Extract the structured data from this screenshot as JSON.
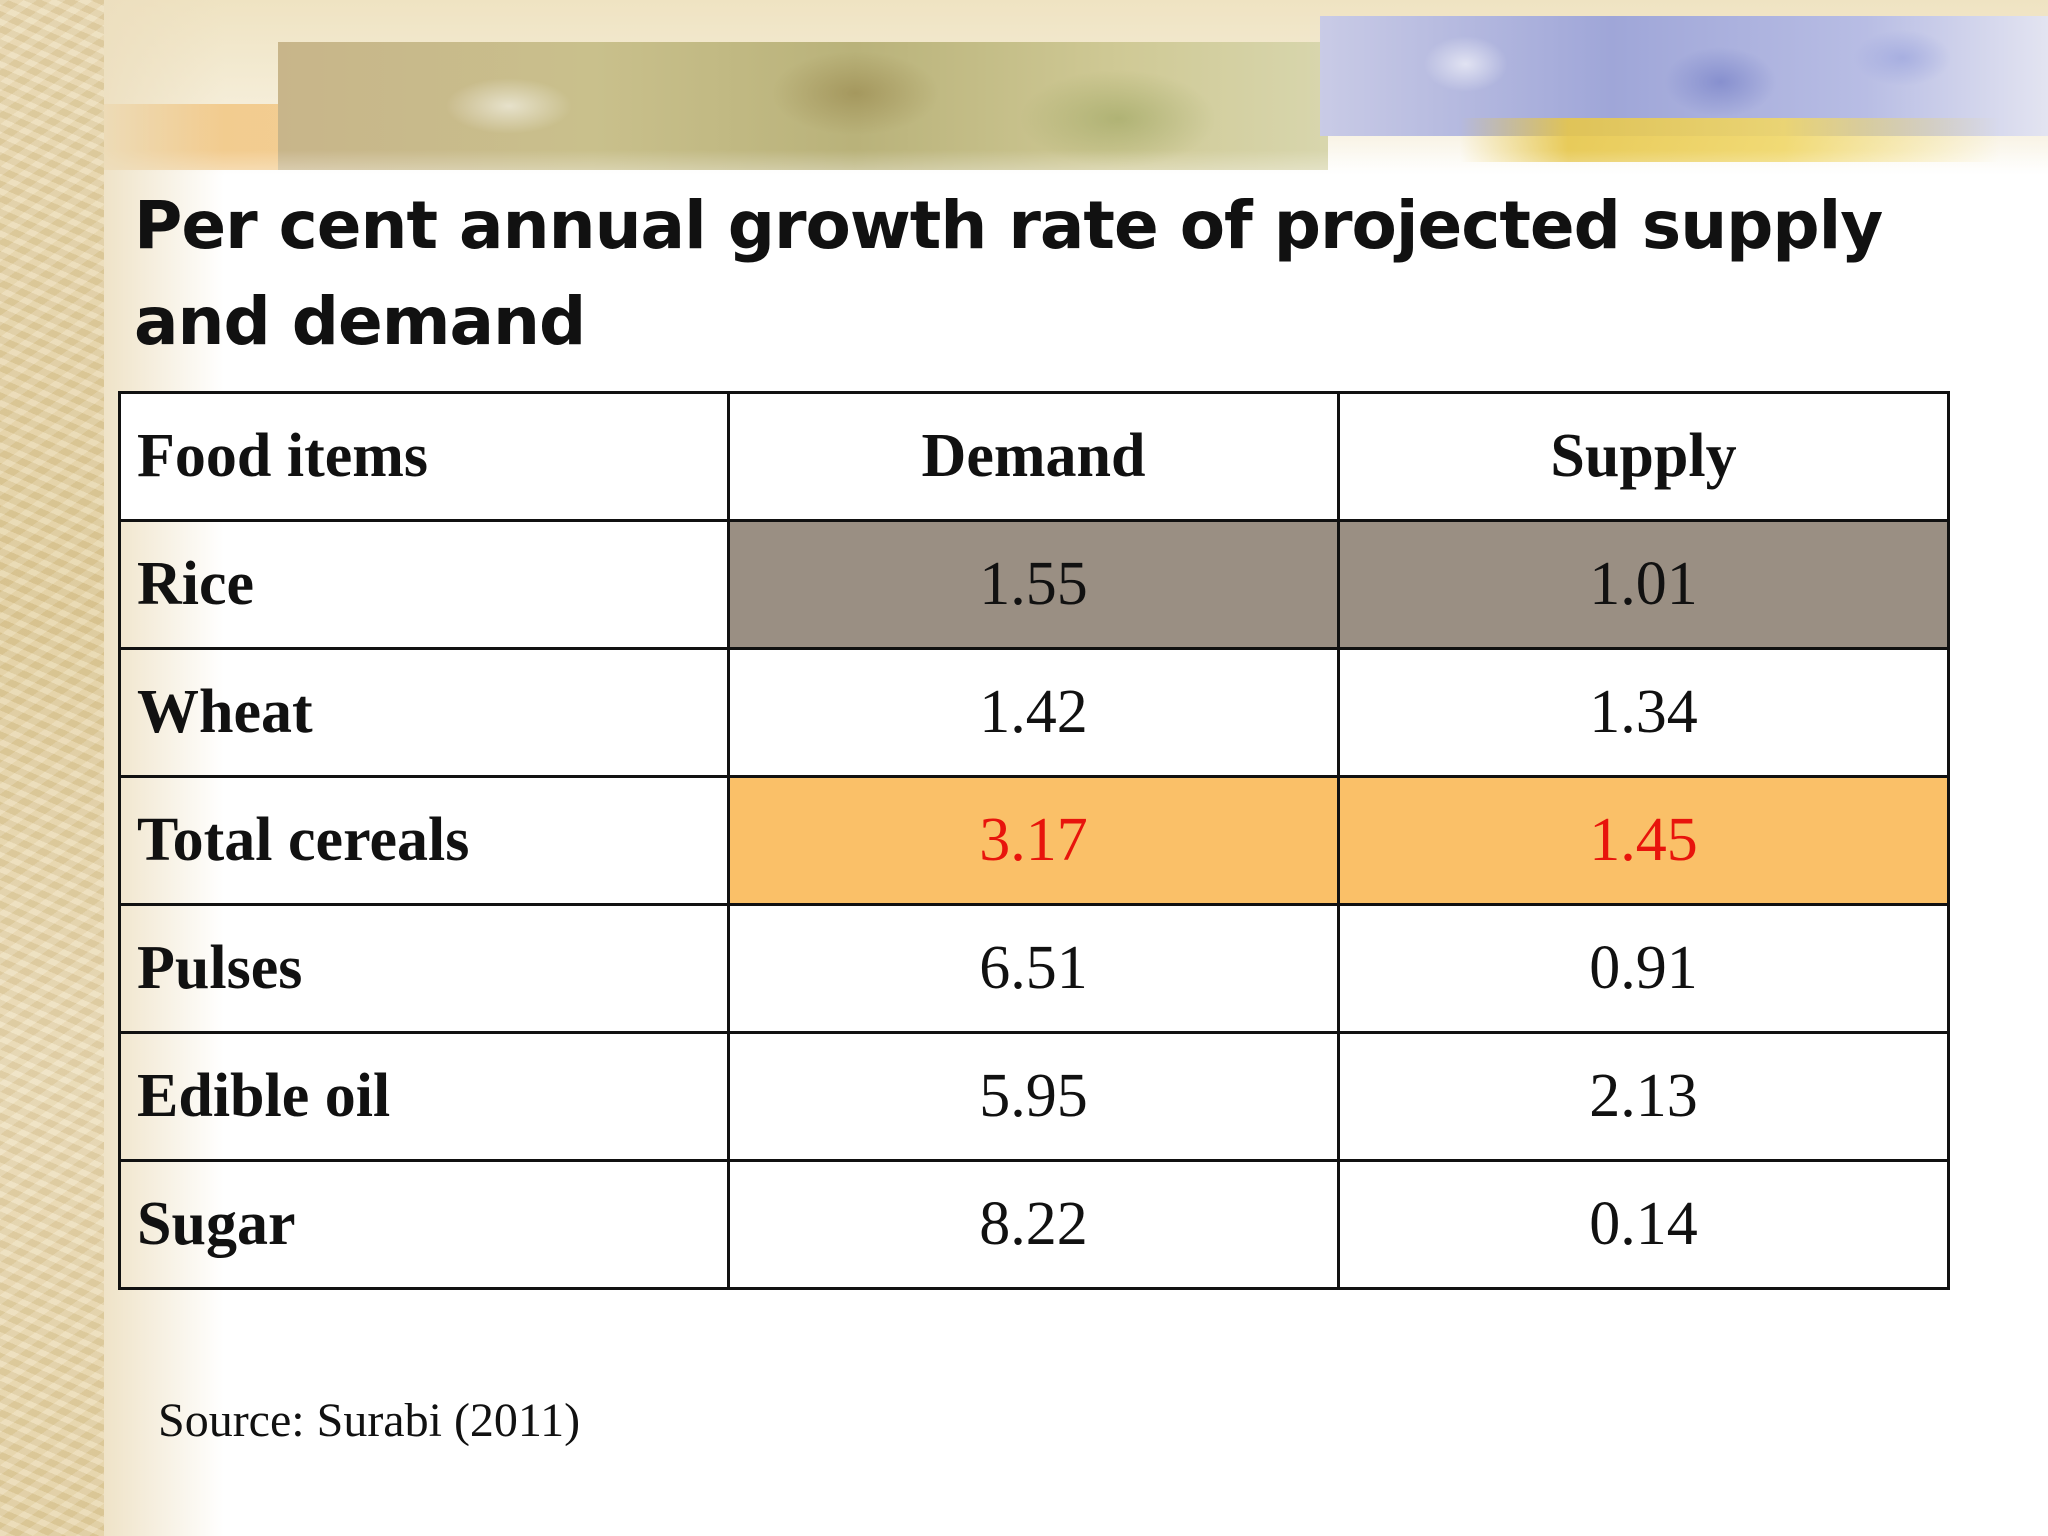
{
  "title": "Per cent annual growth rate of projected supply and demand",
  "table": {
    "headers": [
      "Food items",
      "Demand",
      "Supply"
    ],
    "rows": [
      {
        "item": "Rice",
        "demand": "1.55",
        "supply": "1.01"
      },
      {
        "item": "Wheat",
        "demand": "1.42",
        "supply": "1.34"
      },
      {
        "item": "Total cereals",
        "demand": "3.17",
        "supply": "1.45"
      },
      {
        "item": "Pulses",
        "demand": "6.51",
        "supply": "0.91"
      },
      {
        "item": "Edible oil",
        "demand": "5.95",
        "supply": "2.13"
      },
      {
        "item": "Sugar",
        "demand": "8.22",
        "supply": "0.14"
      }
    ]
  },
  "source": "Source: Surabi (2011)",
  "colors": {
    "rice_highlight": "#9a8f83",
    "total_cereals_highlight": "#fac068",
    "total_cereals_text": "#e8140c"
  }
}
